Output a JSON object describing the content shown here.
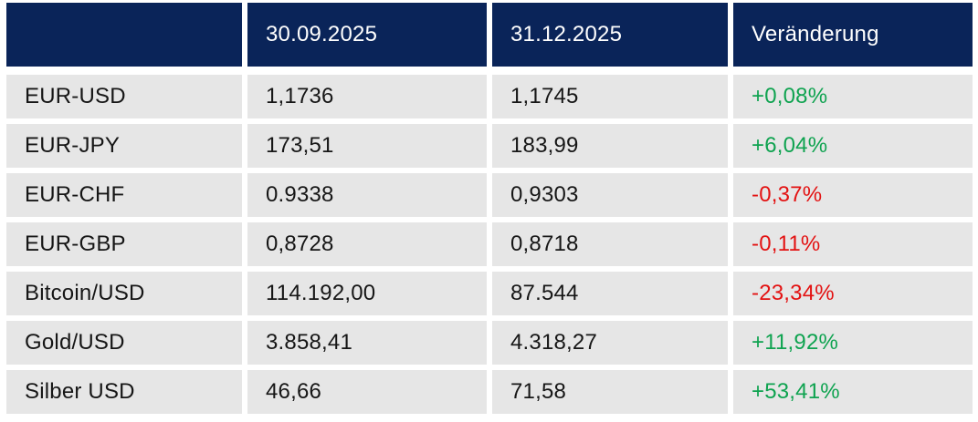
{
  "colors": {
    "header_bg": "#0a2459",
    "header_text": "#ffffff",
    "row_bg": "#e6e6e6",
    "body_text": "#161616",
    "positive": "#0fa350",
    "negative": "#e31212",
    "background": "#ffffff"
  },
  "chart_data": {
    "type": "table",
    "title": "",
    "columns": [
      "",
      "30.09.2025",
      "31.12.2025",
      "Veränderung"
    ],
    "rows": [
      {
        "label": "EUR-USD",
        "values": [
          "1,1736",
          "1,1745"
        ],
        "numeric": [
          1.1736,
          1.1745
        ],
        "change": "+0,08%",
        "change_pct": 0.08,
        "direction": "up"
      },
      {
        "label": "EUR-JPY",
        "values": [
          "173,51",
          "183,99"
        ],
        "numeric": [
          173.51,
          183.99
        ],
        "change": "+6,04%",
        "change_pct": 6.04,
        "direction": "up"
      },
      {
        "label": "EUR-CHF",
        "values": [
          "0.9338",
          "0,9303"
        ],
        "numeric": [
          0.9338,
          0.9303
        ],
        "change": "-0,37%",
        "change_pct": -0.37,
        "direction": "down"
      },
      {
        "label": "EUR-GBP",
        "values": [
          "0,8728",
          "0,8718"
        ],
        "numeric": [
          0.8728,
          0.8718
        ],
        "change": "-0,11%",
        "change_pct": -0.11,
        "direction": "down"
      },
      {
        "label": "Bitcoin/USD",
        "values": [
          "114.192,00",
          "87.544"
        ],
        "numeric": [
          114192.0,
          87544
        ],
        "change": "-23,34%",
        "change_pct": -23.34,
        "direction": "down"
      },
      {
        "label": "Gold/USD",
        "values": [
          "3.858,41",
          "4.318,27"
        ],
        "numeric": [
          3858.41,
          4318.27
        ],
        "change": "+11,92%",
        "change_pct": 11.92,
        "direction": "up"
      },
      {
        "label": "Silber USD",
        "values": [
          "46,66",
          "71,58"
        ],
        "numeric": [
          46.66,
          71.58
        ],
        "change": "+53,41%",
        "change_pct": 53.41,
        "direction": "up"
      }
    ]
  }
}
